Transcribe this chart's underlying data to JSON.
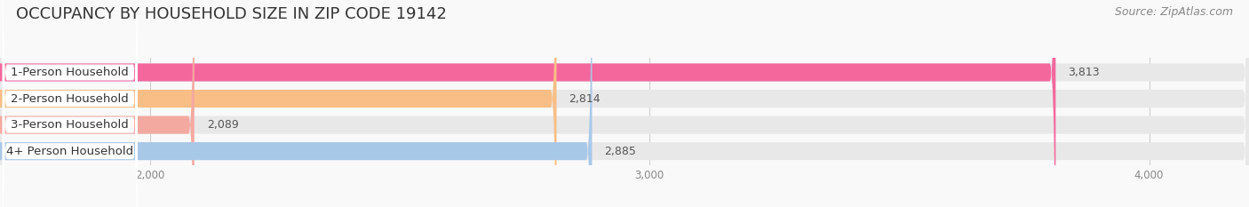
{
  "title": "OCCUPANCY BY HOUSEHOLD SIZE IN ZIP CODE 19142",
  "source": "Source: ZipAtlas.com",
  "categories": [
    "1-Person Household",
    "2-Person Household",
    "3-Person Household",
    "4+ Person Household"
  ],
  "values": [
    3813,
    2814,
    2089,
    2885
  ],
  "bar_colors": [
    "#F4679D",
    "#F9C5D5",
    "#F4A9A8",
    "#A8C8E8"
  ],
  "fg_colors": [
    "#F4679D",
    "#F9BE85",
    "#F4A9A0",
    "#A8C8E8"
  ],
  "xlim": [
    1700,
    4200
  ],
  "xmin": 0,
  "xticks": [
    2000,
    3000,
    4000
  ],
  "xtick_labels": [
    "2,000",
    "3,000",
    "4,000"
  ],
  "background_color": "#f9f9f9",
  "bar_bg_color": "#e8e8e8",
  "bar_height": 0.68,
  "title_fontsize": 13,
  "source_fontsize": 9,
  "label_fontsize": 9.5,
  "value_fontsize": 9
}
